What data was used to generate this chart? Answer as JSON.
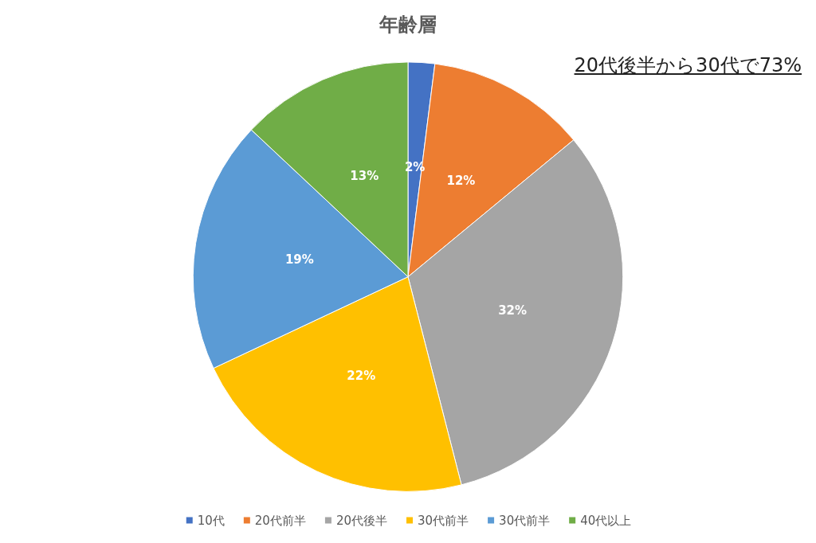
{
  "chart_data": {
    "type": "pie",
    "title": "年齢層",
    "categories": [
      "10代",
      "20代前半",
      "20代後半",
      "30代前半",
      "30代前半",
      "40代以上"
    ],
    "values": [
      2,
      12,
      32,
      22,
      19,
      13
    ],
    "value_labels": [
      "2%",
      "12%",
      "32%",
      "22%",
      "19%",
      "13%"
    ],
    "colors": [
      "#4472c4",
      "#ed7d31",
      "#a5a5a5",
      "#ffc000",
      "#5b9bd5",
      "#70ad47"
    ],
    "annotations": [
      "20代後半から30代で73%"
    ],
    "legend": "bottom"
  }
}
